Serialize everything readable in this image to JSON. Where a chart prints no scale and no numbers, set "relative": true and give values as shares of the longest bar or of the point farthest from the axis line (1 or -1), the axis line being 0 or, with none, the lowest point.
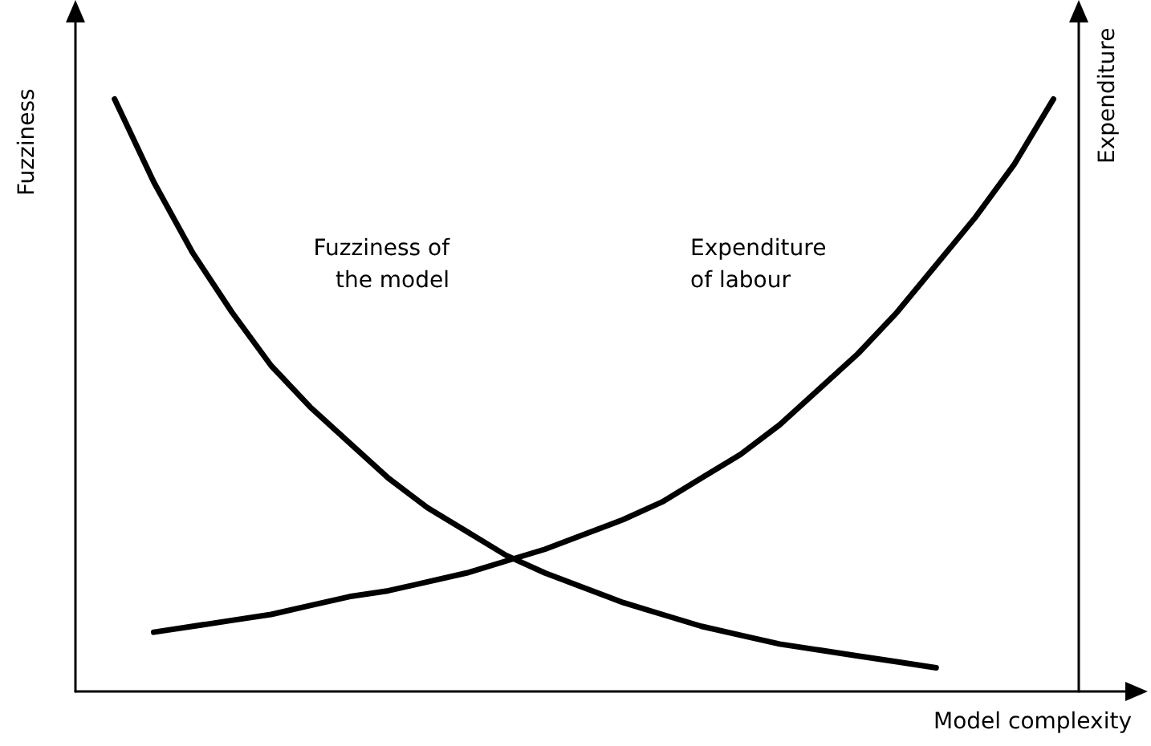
{
  "chart_data": {
    "type": "line",
    "relative": true,
    "xlabel": "Model complexity",
    "ylabel": "Fuzziness",
    "y2label": "Expenditure",
    "categories": [
      null,
      null,
      null,
      null,
      null,
      null,
      null,
      null,
      null,
      null,
      null,
      null,
      null,
      null,
      null,
      null,
      null,
      null,
      null,
      null,
      null,
      null,
      null,
      null,
      null,
      null,
      null,
      null
    ],
    "series": [
      {
        "color": "#000000",
        "values": [
          null,
          1.0,
          0.86,
          0.74,
          0.64,
          0.55,
          0.48,
          0.42,
          0.36,
          0.31,
          0.27,
          0.23,
          0.2,
          0.175,
          0.15,
          0.13,
          0.11,
          0.095,
          0.08,
          0.07,
          0.06,
          0.05,
          0.04,
          null,
          null,
          null,
          null,
          null
        ]
      },
      {
        "color": "#000000",
        "values": [
          null,
          null,
          0.1,
          0.11,
          0.12,
          0.13,
          0.145,
          0.16,
          0.17,
          0.185,
          0.2,
          0.22,
          0.24,
          0.265,
          0.29,
          0.32,
          0.36,
          0.4,
          0.45,
          0.51,
          0.57,
          0.64,
          0.72,
          0.8,
          0.89,
          1.0,
          null,
          null
        ]
      }
    ],
    "annotations": [
      "Fuzziness of\nthe model",
      "Expenditure\nof labour"
    ],
    "grid": false,
    "marker": "none",
    "line_style": "solid"
  }
}
